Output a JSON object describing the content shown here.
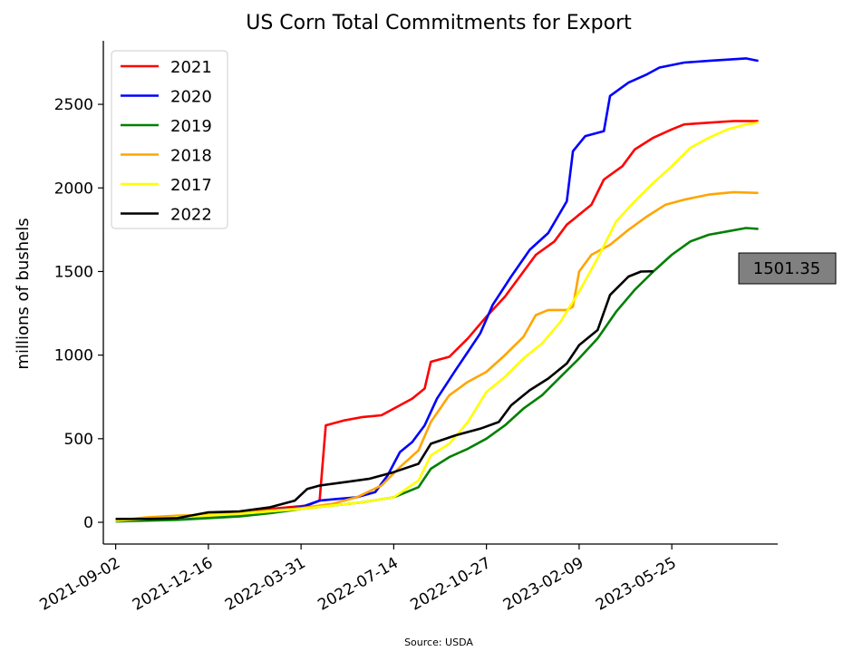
{
  "chart_data": {
    "type": "line",
    "title": "US Corn Total Commitments for Export",
    "xlabel": "",
    "ylabel": "millions of bushels",
    "source": "Source: USDA",
    "x_ticks": [
      "2021-09-02",
      "2021-12-16",
      "2022-03-31",
      "2022-07-14",
      "2022-10-27",
      "2023-02-09",
      "2023-05-25"
    ],
    "xlim": [
      "2021-08-19",
      "2023-09-22"
    ],
    "y_ticks": [
      0,
      500,
      1000,
      1500,
      2000,
      2500
    ],
    "ylim": [
      -130,
      2880
    ],
    "legend_position": "upper-left",
    "grid": false,
    "current_value_label": "1501.35",
    "series": [
      {
        "name": "2021",
        "color": "#ff0000",
        "points": [
          [
            "2021-09-02",
            15
          ],
          [
            "2021-10-07",
            15
          ],
          [
            "2021-11-11",
            20
          ],
          [
            "2021-12-16",
            35
          ],
          [
            "2022-01-20",
            50
          ],
          [
            "2022-02-24",
            80
          ],
          [
            "2022-03-17",
            90
          ],
          [
            "2022-04-07",
            100
          ],
          [
            "2022-04-21",
            130
          ],
          [
            "2022-04-28",
            580
          ],
          [
            "2022-05-19",
            610
          ],
          [
            "2022-06-09",
            630
          ],
          [
            "2022-06-30",
            640
          ],
          [
            "2022-07-21",
            700
          ],
          [
            "2022-08-04",
            740
          ],
          [
            "2022-08-18",
            800
          ],
          [
            "2022-08-25",
            960
          ],
          [
            "2022-09-15",
            990
          ],
          [
            "2022-10-06",
            1100
          ],
          [
            "2022-10-27",
            1230
          ],
          [
            "2022-11-17",
            1350
          ],
          [
            "2022-12-08",
            1500
          ],
          [
            "2022-12-22",
            1600
          ],
          [
            "2023-01-12",
            1680
          ],
          [
            "2023-01-26",
            1780
          ],
          [
            "2023-02-09",
            1840
          ],
          [
            "2023-02-23",
            1900
          ],
          [
            "2023-03-09",
            2050
          ],
          [
            "2023-03-30",
            2130
          ],
          [
            "2023-04-13",
            2230
          ],
          [
            "2023-05-04",
            2300
          ],
          [
            "2023-05-25",
            2350
          ],
          [
            "2023-06-08",
            2380
          ],
          [
            "2023-07-06",
            2390
          ],
          [
            "2023-08-03",
            2400
          ],
          [
            "2023-08-31",
            2400
          ]
        ]
      },
      {
        "name": "2020",
        "color": "#0000ff",
        "points": [
          [
            "2021-09-02",
            10
          ],
          [
            "2021-10-07",
            15
          ],
          [
            "2021-11-11",
            20
          ],
          [
            "2021-12-16",
            30
          ],
          [
            "2022-01-20",
            45
          ],
          [
            "2022-02-24",
            70
          ],
          [
            "2022-03-31",
            90
          ],
          [
            "2022-04-21",
            130
          ],
          [
            "2022-05-12",
            140
          ],
          [
            "2022-06-02",
            150
          ],
          [
            "2022-06-23",
            180
          ],
          [
            "2022-07-07",
            280
          ],
          [
            "2022-07-21",
            420
          ],
          [
            "2022-08-04",
            480
          ],
          [
            "2022-08-18",
            580
          ],
          [
            "2022-09-01",
            740
          ],
          [
            "2022-09-22",
            910
          ],
          [
            "2022-10-06",
            1020
          ],
          [
            "2022-10-20",
            1130
          ],
          [
            "2022-11-03",
            1300
          ],
          [
            "2022-11-24",
            1470
          ],
          [
            "2022-12-15",
            1630
          ],
          [
            "2023-01-05",
            1730
          ],
          [
            "2023-01-26",
            1920
          ],
          [
            "2023-02-02",
            2220
          ],
          [
            "2023-02-16",
            2310
          ],
          [
            "2023-03-09",
            2340
          ],
          [
            "2023-03-16",
            2550
          ],
          [
            "2023-04-06",
            2630
          ],
          [
            "2023-04-27",
            2680
          ],
          [
            "2023-05-11",
            2720
          ],
          [
            "2023-06-08",
            2750
          ],
          [
            "2023-07-06",
            2760
          ],
          [
            "2023-08-03",
            2770
          ],
          [
            "2023-08-17",
            2775
          ],
          [
            "2023-08-31",
            2760
          ]
        ]
      },
      {
        "name": "2019",
        "color": "#008000",
        "points": [
          [
            "2021-09-02",
            5
          ],
          [
            "2021-10-07",
            10
          ],
          [
            "2021-11-11",
            15
          ],
          [
            "2021-12-16",
            25
          ],
          [
            "2022-01-20",
            35
          ],
          [
            "2022-02-24",
            55
          ],
          [
            "2022-03-31",
            80
          ],
          [
            "2022-05-05",
            100
          ],
          [
            "2022-06-09",
            120
          ],
          [
            "2022-07-14",
            150
          ],
          [
            "2022-08-11",
            210
          ],
          [
            "2022-08-25",
            320
          ],
          [
            "2022-09-15",
            390
          ],
          [
            "2022-10-06",
            440
          ],
          [
            "2022-10-27",
            500
          ],
          [
            "2022-11-17",
            580
          ],
          [
            "2022-12-08",
            680
          ],
          [
            "2022-12-29",
            760
          ],
          [
            "2023-01-19",
            870
          ],
          [
            "2023-02-09",
            980
          ],
          [
            "2023-03-02",
            1100
          ],
          [
            "2023-03-23",
            1260
          ],
          [
            "2023-04-13",
            1390
          ],
          [
            "2023-05-04",
            1500
          ],
          [
            "2023-05-25",
            1600
          ],
          [
            "2023-06-15",
            1680
          ],
          [
            "2023-07-06",
            1720
          ],
          [
            "2023-07-27",
            1740
          ],
          [
            "2023-08-17",
            1760
          ],
          [
            "2023-08-31",
            1755
          ]
        ]
      },
      {
        "name": "2018",
        "color": "#ffa500",
        "points": [
          [
            "2021-09-02",
            10
          ],
          [
            "2021-10-07",
            30
          ],
          [
            "2021-11-11",
            40
          ],
          [
            "2021-12-16",
            45
          ],
          [
            "2022-01-20",
            55
          ],
          [
            "2022-02-24",
            70
          ],
          [
            "2022-03-31",
            85
          ],
          [
            "2022-05-05",
            110
          ],
          [
            "2022-06-02",
            150
          ],
          [
            "2022-06-30",
            220
          ],
          [
            "2022-07-21",
            330
          ],
          [
            "2022-08-11",
            430
          ],
          [
            "2022-08-25",
            600
          ],
          [
            "2022-09-15",
            760
          ],
          [
            "2022-10-06",
            840
          ],
          [
            "2022-10-27",
            900
          ],
          [
            "2022-11-17",
            1000
          ],
          [
            "2022-12-08",
            1110
          ],
          [
            "2022-12-22",
            1240
          ],
          [
            "2023-01-05",
            1270
          ],
          [
            "2023-01-26",
            1270
          ],
          [
            "2023-02-02",
            1290
          ],
          [
            "2023-02-09",
            1500
          ],
          [
            "2023-02-23",
            1600
          ],
          [
            "2023-03-16",
            1660
          ],
          [
            "2023-04-06",
            1750
          ],
          [
            "2023-04-27",
            1830
          ],
          [
            "2023-05-18",
            1900
          ],
          [
            "2023-06-08",
            1930
          ],
          [
            "2023-07-06",
            1960
          ],
          [
            "2023-08-03",
            1975
          ],
          [
            "2023-08-31",
            1970
          ]
        ]
      },
      {
        "name": "2017",
        "color": "#ffff00",
        "points": [
          [
            "2021-09-02",
            10
          ],
          [
            "2021-10-07",
            20
          ],
          [
            "2021-11-11",
            30
          ],
          [
            "2021-12-16",
            40
          ],
          [
            "2022-01-20",
            50
          ],
          [
            "2022-02-24",
            65
          ],
          [
            "2022-03-31",
            80
          ],
          [
            "2022-05-05",
            100
          ],
          [
            "2022-06-09",
            120
          ],
          [
            "2022-07-14",
            150
          ],
          [
            "2022-08-11",
            250
          ],
          [
            "2022-08-25",
            400
          ],
          [
            "2022-09-15",
            470
          ],
          [
            "2022-10-06",
            600
          ],
          [
            "2022-10-27",
            780
          ],
          [
            "2022-11-17",
            870
          ],
          [
            "2022-12-08",
            980
          ],
          [
            "2022-12-29",
            1070
          ],
          [
            "2023-01-19",
            1200
          ],
          [
            "2023-02-09",
            1380
          ],
          [
            "2023-03-02",
            1580
          ],
          [
            "2023-03-23",
            1800
          ],
          [
            "2023-04-13",
            1920
          ],
          [
            "2023-05-04",
            2030
          ],
          [
            "2023-05-25",
            2130
          ],
          [
            "2023-06-15",
            2240
          ],
          [
            "2023-07-06",
            2300
          ],
          [
            "2023-07-27",
            2350
          ],
          [
            "2023-08-17",
            2380
          ],
          [
            "2023-08-31",
            2390
          ]
        ]
      },
      {
        "name": "2022",
        "color": "#000000",
        "points": [
          [
            "2021-09-02",
            20
          ],
          [
            "2021-10-07",
            20
          ],
          [
            "2021-11-11",
            25
          ],
          [
            "2021-12-16",
            60
          ],
          [
            "2022-01-20",
            65
          ],
          [
            "2022-02-24",
            90
          ],
          [
            "2022-03-24",
            130
          ],
          [
            "2022-04-07",
            200
          ],
          [
            "2022-04-21",
            220
          ],
          [
            "2022-05-19",
            240
          ],
          [
            "2022-06-16",
            260
          ],
          [
            "2022-07-14",
            300
          ],
          [
            "2022-08-11",
            350
          ],
          [
            "2022-08-25",
            470
          ],
          [
            "2022-09-22",
            520
          ],
          [
            "2022-10-20",
            560
          ],
          [
            "2022-11-10",
            600
          ],
          [
            "2022-11-24",
            700
          ],
          [
            "2022-12-15",
            790
          ],
          [
            "2023-01-05",
            860
          ],
          [
            "2023-01-26",
            950
          ],
          [
            "2023-02-09",
            1060
          ],
          [
            "2023-03-02",
            1150
          ],
          [
            "2023-03-16",
            1360
          ],
          [
            "2023-04-06",
            1470
          ],
          [
            "2023-04-20",
            1500
          ],
          [
            "2023-05-04",
            1501.35
          ]
        ]
      }
    ]
  }
}
